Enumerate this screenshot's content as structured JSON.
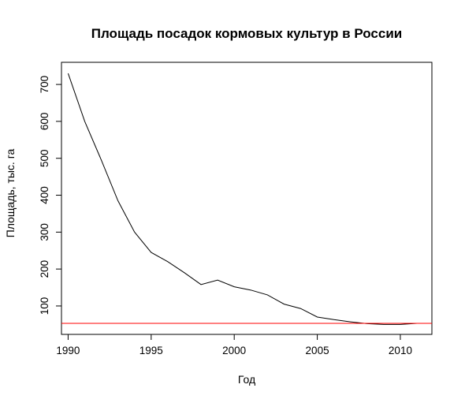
{
  "chart_data": {
    "type": "line",
    "title": "Площадь посадок кормовых культур в России",
    "xlabel": "Год",
    "ylabel": "Площадь, тыс. га",
    "xlim": [
      1989.6,
      2011.9
    ],
    "ylim": [
      23,
      760
    ],
    "x_ticks": [
      1990,
      1995,
      2000,
      2005,
      2010
    ],
    "y_ticks": [
      100,
      200,
      300,
      400,
      500,
      600,
      700
    ],
    "grid": false,
    "legend": "none",
    "series": [
      {
        "color": "#000000",
        "x": [
          1990,
          1991,
          1992,
          1993,
          1994,
          1995,
          1996,
          1997,
          1998,
          1999,
          2000,
          2001,
          2002,
          2003,
          2004,
          2005,
          2006,
          2007,
          2008,
          2009,
          2010,
          2011
        ],
        "values": [
          730,
          600,
          495,
          385,
          300,
          245,
          220,
          190,
          158,
          170,
          152,
          143,
          130,
          105,
          93,
          70,
          63,
          57,
          52,
          50,
          50,
          53
        ]
      }
    ],
    "hline": {
      "y": 53,
      "color": "#ff0000"
    }
  }
}
